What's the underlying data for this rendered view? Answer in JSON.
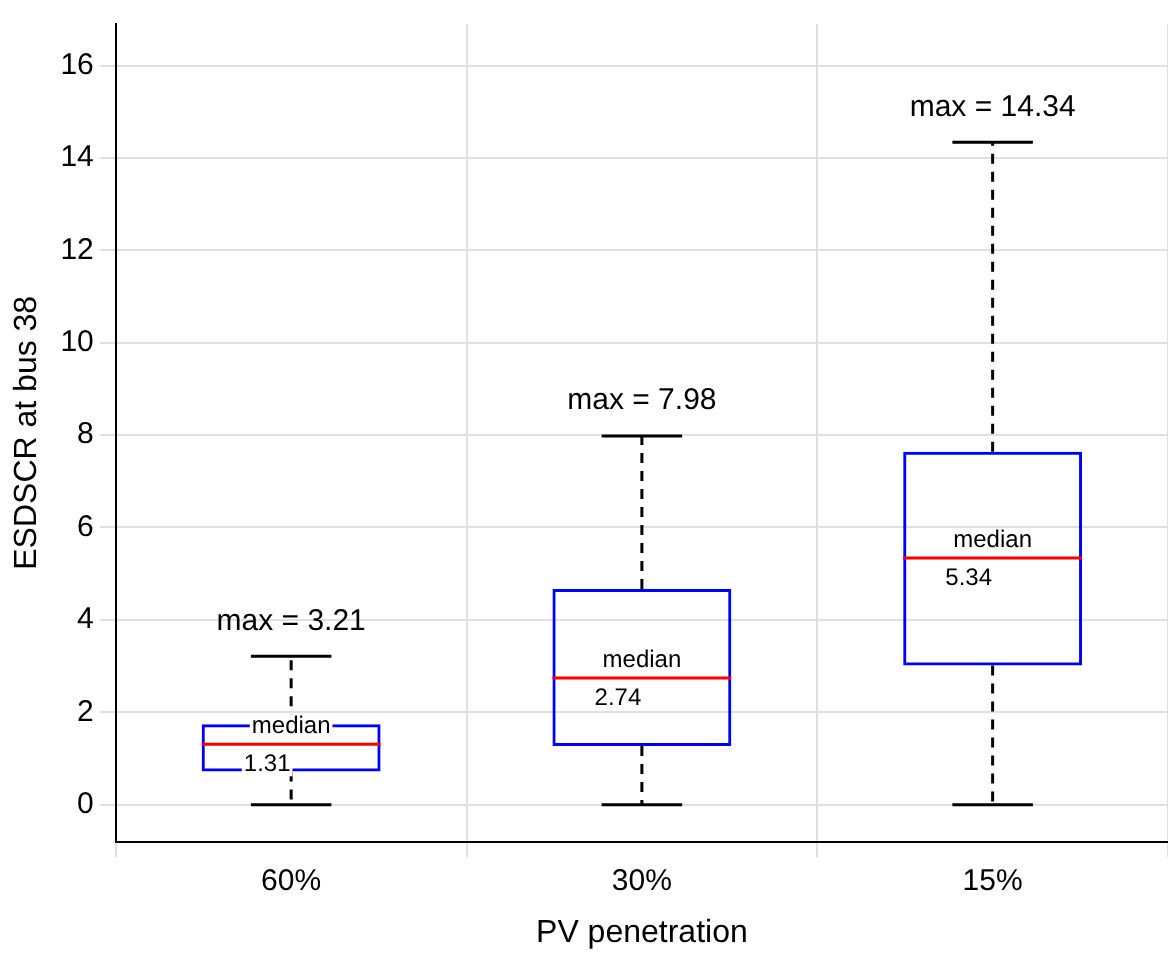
{
  "chart_data": {
    "type": "box",
    "xlabel": "PV penetration",
    "ylabel": "ESDSCR at bus 38",
    "categories": [
      "60%",
      "30%",
      "15%"
    ],
    "series": [
      {
        "color": "#0000ff",
        "boxes": [
          {
            "low": 0,
            "q1": 0.72,
            "median": 1.31,
            "q3": 1.74,
            "high": 3.21
          },
          {
            "low": 0,
            "q1": 1.27,
            "median": 2.74,
            "q3": 4.67,
            "high": 7.98
          },
          {
            "low": 0,
            "q1": 3.01,
            "median": 5.34,
            "q3": 7.64,
            "high": 14.34
          }
        ]
      }
    ],
    "ylim": [
      -0.8,
      16.9
    ],
    "yticks": [
      0,
      2,
      4,
      6,
      8,
      10,
      12,
      14,
      16
    ],
    "grid": true,
    "legend": false,
    "annotations": [
      {
        "text": "max = 3.21",
        "x": "60%",
        "y": 3.21
      },
      {
        "text": "max = 7.98",
        "x": "30%",
        "y": 7.98
      },
      {
        "text": "max = 14.34",
        "x": "15%",
        "y": 14.34
      },
      {
        "text": "median\n1.31",
        "x": "60%",
        "y": 1.31
      },
      {
        "text": "median\n2.74",
        "x": "30%",
        "y": 2.74
      },
      {
        "text": "median\n5.34",
        "x": "15%",
        "y": 5.34
      }
    ]
  }
}
